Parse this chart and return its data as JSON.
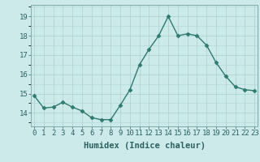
{
  "x": [
    0,
    1,
    2,
    3,
    4,
    5,
    6,
    7,
    8,
    9,
    10,
    11,
    12,
    13,
    14,
    15,
    16,
    17,
    18,
    19,
    20,
    21,
    22,
    23
  ],
  "y": [
    14.9,
    14.25,
    14.3,
    14.55,
    14.3,
    14.1,
    13.75,
    13.65,
    13.65,
    14.4,
    15.2,
    16.5,
    17.3,
    18.0,
    19.0,
    18.0,
    18.1,
    18.0,
    17.5,
    16.6,
    15.9,
    15.35,
    15.2,
    15.15
  ],
  "line_color": "#2d7a6f",
  "marker": "D",
  "marker_size": 2.5,
  "bg_color": "#cdeaea",
  "grid_color": "#aed4d3",
  "xlabel": "Humidex (Indice chaleur)",
  "ylim": [
    13.3,
    19.6
  ],
  "yticks": [
    14,
    15,
    16,
    17,
    18,
    19
  ],
  "xticks": [
    0,
    1,
    2,
    3,
    4,
    5,
    6,
    7,
    8,
    9,
    10,
    11,
    12,
    13,
    14,
    15,
    16,
    17,
    18,
    19,
    20,
    21,
    22,
    23
  ],
  "xlabel_fontsize": 7.5,
  "tick_fontsize": 6.5,
  "line_width": 1.0
}
